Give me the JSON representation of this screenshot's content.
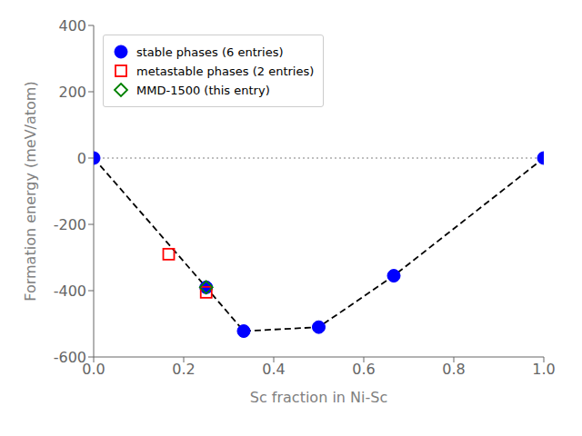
{
  "chart_data": {
    "type": "scatter",
    "xlabel": "Sc fraction in Ni-Sc",
    "ylabel": "Formation energy (meV/atom)",
    "xlim": [
      0.0,
      1.0
    ],
    "ylim": [
      -600,
      400
    ],
    "xticks": [
      {
        "value": 0,
        "label": "0.0"
      },
      0.2,
      0.4,
      0.6,
      0.8,
      {
        "value": 1,
        "label": "1.0"
      }
    ],
    "yticks": [
      -600,
      -400,
      -200,
      0,
      200,
      400
    ],
    "grid": false,
    "legend": "upper left",
    "series": [
      {
        "type": "hline",
        "values": [
          0
        ],
        "color": "gray",
        "line_style": "dotted"
      },
      {
        "type": "line",
        "x": [
          0.0,
          0.25,
          0.3333,
          0.5,
          0.6667,
          1.0
        ],
        "values": [
          0,
          -390,
          -522,
          -510,
          -355,
          0
        ],
        "color": "black",
        "line_style": "dashed"
      },
      {
        "type": "scatter",
        "name": "stable phases (6 entries)",
        "x": [
          0.0,
          0.25,
          0.3333,
          0.5,
          0.6667,
          1.0
        ],
        "values": [
          0,
          -390,
          -522,
          -510,
          -355,
          0
        ],
        "color": "#0000ff",
        "marker": "circle"
      },
      {
        "type": "scatter",
        "name": "metastable phases (2 entries)",
        "x": [
          0.1667,
          0.25
        ],
        "values": [
          -290,
          -405
        ],
        "color": "red",
        "marker": "open square"
      },
      {
        "type": "scatter",
        "name": "MMD-1500 (this entry)",
        "x": [
          0.25
        ],
        "values": [
          -390
        ],
        "color": "green",
        "marker": "open diamond"
      }
    ]
  }
}
